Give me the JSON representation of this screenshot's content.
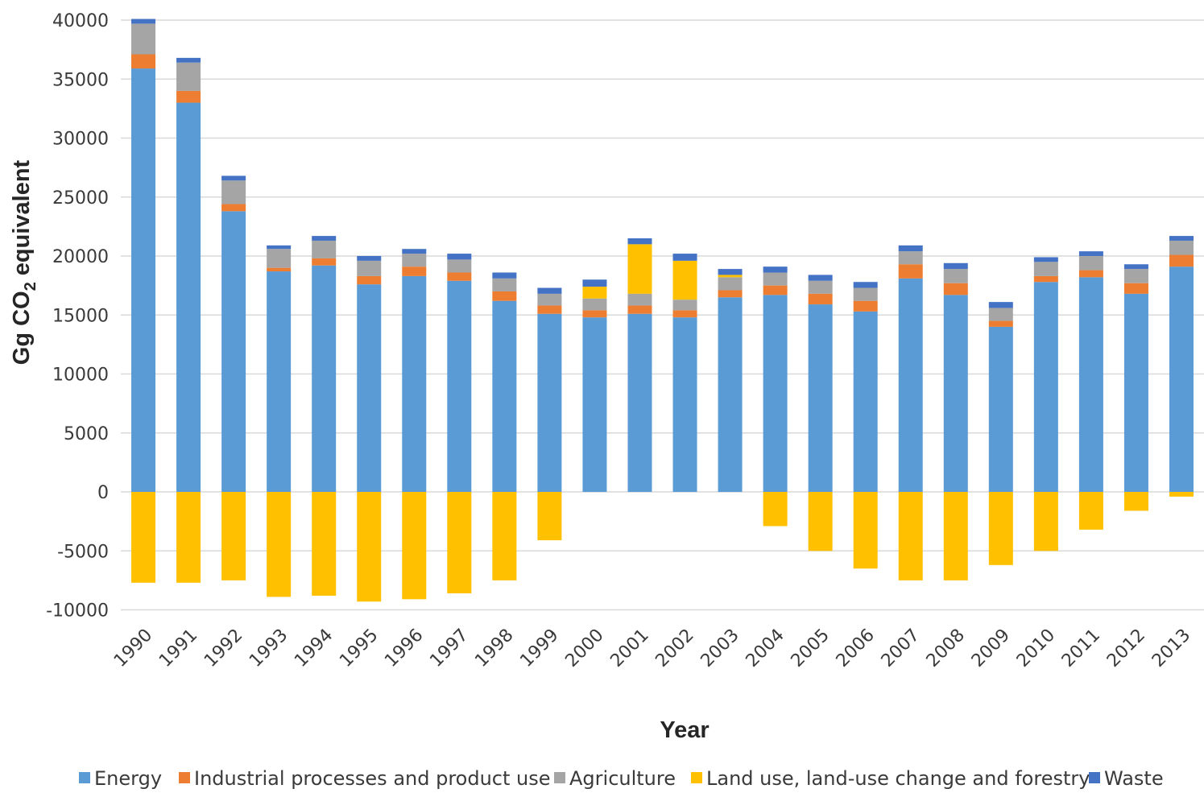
{
  "chart_data": {
    "type": "bar",
    "stacked": true,
    "xlabel": "Year",
    "ylabel": "Gg CO",
    "ylabel_subscript": "2",
    "ylabel_suffix": " equivalent",
    "ylim": [
      -10000,
      40000
    ],
    "yticks": [
      40000,
      35000,
      30000,
      25000,
      20000,
      15000,
      10000,
      5000,
      0,
      -5000,
      -10000
    ],
    "grid": true,
    "legend_position": "bottom",
    "categories": [
      "1990",
      "1991",
      "1992",
      "1993",
      "1994",
      "1995",
      "1996",
      "1997",
      "1998",
      "1999",
      "2000",
      "2001",
      "2002",
      "2003",
      "2004",
      "2005",
      "2006",
      "2007",
      "2008",
      "2009",
      "2010",
      "2011",
      "2012",
      "2013"
    ],
    "series": [
      {
        "name": "Energy",
        "color": "#5b9bd5",
        "values": [
          35900,
          33000,
          23800,
          18700,
          19200,
          17600,
          18300,
          17900,
          16200,
          15100,
          14800,
          15100,
          14800,
          16500,
          16700,
          15900,
          15300,
          18100,
          16700,
          14000,
          17800,
          18200,
          16800,
          19100
        ]
      },
      {
        "name": "Industrial processes and product use",
        "color": "#ed7d31",
        "values": [
          1200,
          1000,
          600,
          300,
          600,
          700,
          800,
          700,
          800,
          700,
          600,
          700,
          600,
          600,
          800,
          900,
          900,
          1200,
          1000,
          500,
          500,
          600,
          900,
          1000
        ]
      },
      {
        "name": "Agriculture",
        "color": "#a5a5a5",
        "values": [
          2600,
          2400,
          2000,
          1600,
          1500,
          1300,
          1100,
          1100,
          1100,
          1000,
          1000,
          1000,
          900,
          1100,
          1100,
          1100,
          1100,
          1100,
          1200,
          1100,
          1200,
          1200,
          1200,
          1200
        ]
      },
      {
        "name": "Land use, land-use change and forestry",
        "color": "#ffc000",
        "values": [
          -7700,
          -7700,
          -7500,
          -8900,
          -8800,
          -9300,
          -9100,
          -8600,
          -7500,
          -4100,
          1000,
          4200,
          3300,
          200,
          -2900,
          -5000,
          -6500,
          -7500,
          -7500,
          -6200,
          -5000,
          -3200,
          -1600,
          -400
        ]
      },
      {
        "name": "Waste",
        "color": "#4472c4",
        "values": [
          400,
          400,
          400,
          300,
          400,
          400,
          400,
          500,
          500,
          500,
          600,
          500,
          600,
          500,
          500,
          500,
          500,
          500,
          500,
          500,
          400,
          400,
          400,
          400
        ]
      }
    ]
  }
}
